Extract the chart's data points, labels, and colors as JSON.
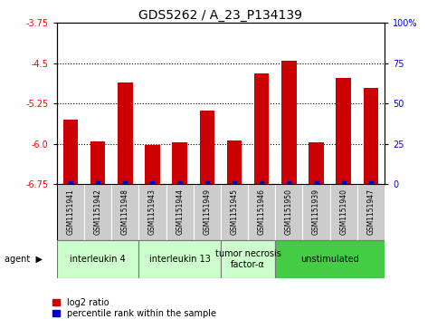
{
  "title": "GDS5262 / A_23_P134139",
  "samples": [
    "GSM1151941",
    "GSM1151942",
    "GSM1151948",
    "GSM1151943",
    "GSM1151944",
    "GSM1151949",
    "GSM1151945",
    "GSM1151946",
    "GSM1151950",
    "GSM1151939",
    "GSM1151940",
    "GSM1151947"
  ],
  "log2_values": [
    -5.55,
    -5.95,
    -4.85,
    -6.02,
    -5.97,
    -5.38,
    -5.93,
    -4.68,
    -4.45,
    -5.97,
    -4.78,
    -4.96
  ],
  "percentile_values": [
    1,
    1,
    1,
    1,
    1,
    1,
    1,
    1,
    1,
    1,
    1,
    1
  ],
  "ylim_left": [
    -6.75,
    -3.75
  ],
  "ylim_right": [
    0,
    100
  ],
  "yticks_left": [
    -6.75,
    -6.0,
    -5.25,
    -4.5,
    -3.75
  ],
  "yticks_right": [
    0,
    25,
    50,
    75,
    100
  ],
  "gridlines": [
    -6.0,
    -5.25,
    -4.5
  ],
  "bar_color": "#cc0000",
  "dot_color": "#0000cc",
  "agent_groups": [
    {
      "label": "interleukin 4",
      "start": 0,
      "end": 3,
      "color": "#ccffcc"
    },
    {
      "label": "interleukin 13",
      "start": 3,
      "end": 6,
      "color": "#ccffcc"
    },
    {
      "label": "tumor necrosis\nfactor-α",
      "start": 6,
      "end": 8,
      "color": "#ccffcc"
    },
    {
      "label": "unstimulated",
      "start": 8,
      "end": 12,
      "color": "#44cc44"
    }
  ],
  "sample_bg_color": "#cccccc",
  "legend_red_label": "log2 ratio",
  "legend_blue_label": "percentile rank within the sample",
  "title_fontsize": 10,
  "tick_fontsize": 7,
  "sample_fontsize": 5.5,
  "agent_fontsize": 7,
  "legend_fontsize": 7
}
